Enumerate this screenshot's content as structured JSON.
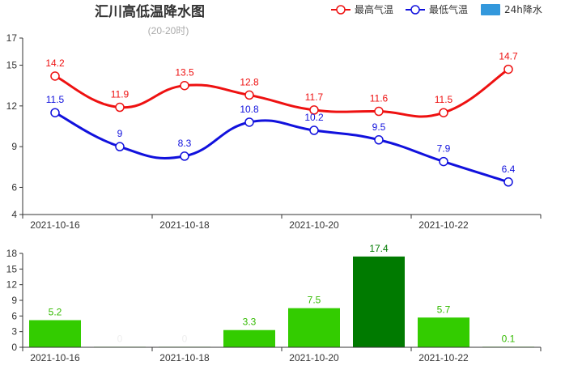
{
  "title": "汇川高低温降水图",
  "subtitle": "(20-20时)",
  "legend": [
    {
      "name": "最高气温",
      "color": "#ee1111",
      "kind": "line"
    },
    {
      "name": "最低气温",
      "color": "#1111dd",
      "kind": "line"
    },
    {
      "name": "24h降水",
      "color": "#3398dc",
      "kind": "bar"
    }
  ],
  "chart_data": [
    {
      "type": "line",
      "x": [
        "2021-10-16",
        "2021-10-17",
        "2021-10-18",
        "2021-10-19",
        "2021-10-20",
        "2021-10-21",
        "2021-10-22",
        "2021-10-23"
      ],
      "x_tick_labels": [
        "2021-10-16",
        "2021-10-18",
        "2021-10-20",
        "2021-10-22"
      ],
      "series": [
        {
          "name": "最高气温",
          "values": [
            14.2,
            11.9,
            13.5,
            12.8,
            11.7,
            11.6,
            11.5,
            14.7
          ],
          "color": "#ee1111"
        },
        {
          "name": "最低气温",
          "values": [
            11.5,
            9,
            8.3,
            10.8,
            10.2,
            9.5,
            7.9,
            6.4
          ],
          "color": "#1111dd"
        }
      ],
      "ylim": [
        4,
        17
      ],
      "y_ticks": [
        4,
        6,
        9,
        12,
        15,
        17
      ]
    },
    {
      "type": "bar",
      "x": [
        "2021-10-16",
        "2021-10-17",
        "2021-10-18",
        "2021-10-19",
        "2021-10-20",
        "2021-10-21",
        "2021-10-22",
        "2021-10-23"
      ],
      "x_tick_labels": [
        "2021-10-16",
        "2021-10-18",
        "2021-10-20",
        "2021-10-22"
      ],
      "series": [
        {
          "name": "24h降水",
          "values": [
            5.2,
            0,
            0,
            3.3,
            7.5,
            17.4,
            5.7,
            0.1
          ]
        }
      ],
      "bar_colors": [
        "#33cc00",
        "#33cc00",
        "#33cc00",
        "#33cc00",
        "#33cc00",
        "#007a00",
        "#33cc00",
        "#33cc00"
      ],
      "value_label_colors": [
        "#33bb00",
        "#eeeeee",
        "#eeeeee",
        "#33bb00",
        "#33bb00",
        "#007a00",
        "#33bb00",
        "#33bb00"
      ],
      "ylim": [
        0,
        18
      ],
      "y_ticks": [
        0,
        3,
        6,
        9,
        12,
        15,
        18
      ]
    }
  ]
}
